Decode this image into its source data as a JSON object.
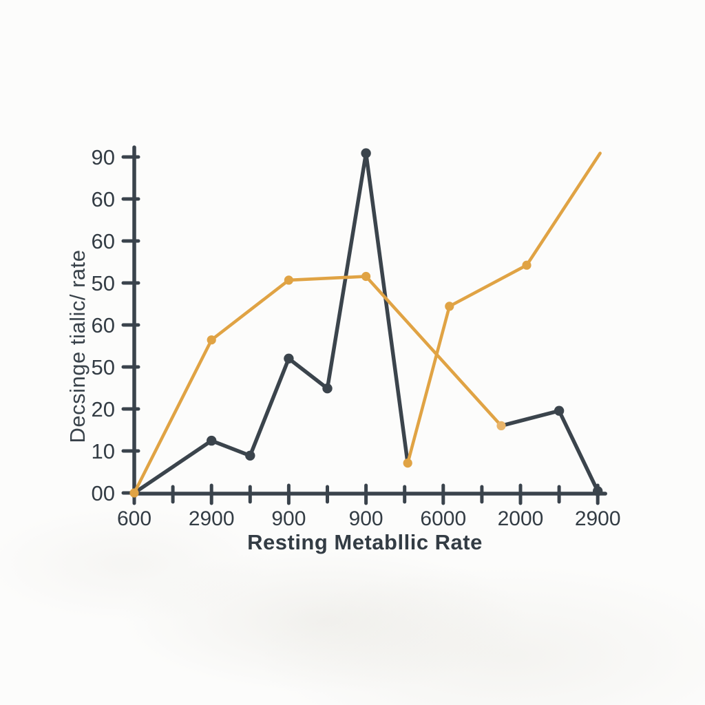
{
  "figure": {
    "background": "#fcfcfb",
    "axis_color": "#3a434c",
    "text_color": "#333c44"
  },
  "chart_data": {
    "type": "line",
    "title": "",
    "xlabel": "Resting Metabllic Rate",
    "ylabel": "Decsinge tialic/ rate",
    "x_tick_labels": [
      "600",
      "2900",
      "900",
      "900",
      "6000",
      "2000",
      "2900"
    ],
    "y_tick_labels_bottom_to_top": [
      "00",
      "10",
      "20",
      "50",
      "60",
      "50",
      "60",
      "60",
      "90"
    ],
    "ylim": [
      0,
      90
    ],
    "grid": false,
    "legend": "none",
    "note": "x values given as labeled-tick index (0 = '600' ... 6 = rightmost '2900'); v values estimated on 0-90 axis",
    "series": [
      {
        "name": "charcoal-segment-a",
        "color": "#3b444c",
        "points": [
          {
            "x": 0,
            "v": 0,
            "dot": false
          },
          {
            "x": 1,
            "v": 14,
            "dot": true
          },
          {
            "x": 1.5,
            "v": 10,
            "dot": true
          },
          {
            "x": 2,
            "v": 36,
            "dot": true
          },
          {
            "x": 2.5,
            "v": 28,
            "dot": true
          },
          {
            "x": 3,
            "v": 91,
            "dot": true
          },
          {
            "x": 3.54,
            "v": 8,
            "dot": false
          }
        ]
      },
      {
        "name": "charcoal-segment-b",
        "color": "#3b444c",
        "points": [
          {
            "x": 4.75,
            "v": 18,
            "dot": false
          },
          {
            "x": 5.5,
            "v": 22,
            "dot": true
          },
          {
            "x": 6,
            "v": 0.5,
            "dot": true
          }
        ]
      },
      {
        "name": "amber-segment-a",
        "color": "#e0a344",
        "points": [
          {
            "x": 0,
            "v": 0,
            "dot": true
          },
          {
            "x": 1,
            "v": 41,
            "dot": true
          },
          {
            "x": 2,
            "v": 57,
            "dot": true
          },
          {
            "x": 3,
            "v": 58,
            "dot": true
          },
          {
            "x": 4.75,
            "v": 18,
            "dot": true,
            "dot_color": "#e9b469"
          }
        ]
      },
      {
        "name": "amber-segment-b",
        "color": "#e0a344",
        "points": [
          {
            "x": 3.54,
            "v": 8,
            "dot": true
          },
          {
            "x": 4.08,
            "v": 50,
            "dot": true
          },
          {
            "x": 5.08,
            "v": 61,
            "dot": true
          },
          {
            "x": 6.03,
            "v": 91,
            "dot": false
          }
        ]
      }
    ]
  }
}
